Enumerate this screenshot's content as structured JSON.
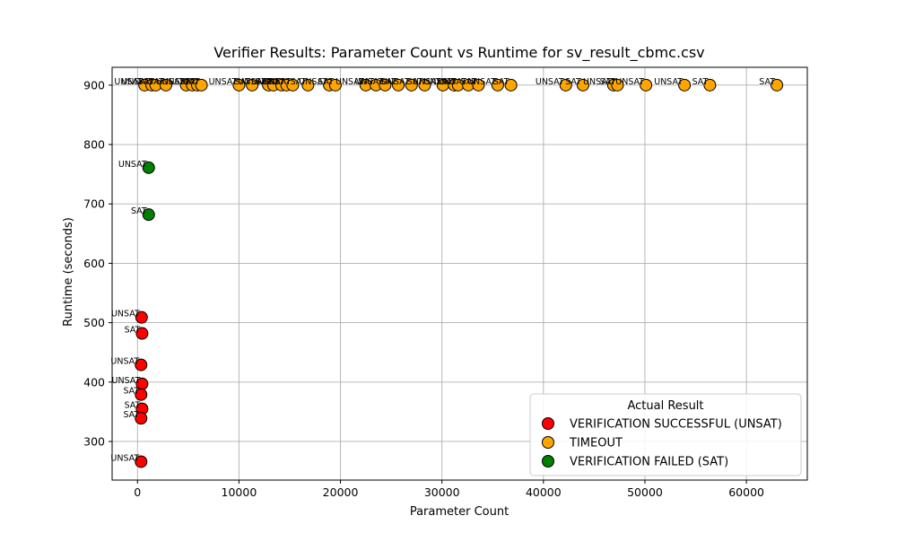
{
  "chart_data": {
    "type": "scatter",
    "title": "Verifier Results: Parameter Count vs Runtime for sv_result_cbmc.csv",
    "xlabel": "Parameter Count",
    "ylabel": "Runtime (seconds)",
    "xlim": [
      -2500,
      66000
    ],
    "ylim": [
      235,
      930
    ],
    "xticks": [
      0,
      10000,
      20000,
      30000,
      40000,
      50000,
      60000
    ],
    "xtick_labels": [
      "0",
      "10000",
      "20000",
      "30000",
      "40000",
      "50000",
      "60000"
    ],
    "yticks": [
      300,
      400,
      500,
      600,
      700,
      800,
      900
    ],
    "ytick_labels": [
      "300",
      "400",
      "500",
      "600",
      "700",
      "800",
      "900"
    ],
    "grid": true,
    "legend": {
      "title": "Actual Result",
      "placement": "lower-right"
    },
    "series": [
      {
        "name": "VERIFICATION SUCCESSFUL (UNSAT)",
        "color": "#ff0000",
        "points": [
          {
            "x": 400,
            "y": 509,
            "label": "UNSAT"
          },
          {
            "x": 450,
            "y": 482,
            "label": "SAT"
          },
          {
            "x": 350,
            "y": 429,
            "label": "UNSAT"
          },
          {
            "x": 450,
            "y": 397,
            "label": "UNSAT"
          },
          {
            "x": 350,
            "y": 379,
            "label": "SAT"
          },
          {
            "x": 450,
            "y": 355,
            "label": "SAT"
          },
          {
            "x": 350,
            "y": 339,
            "label": "SAT"
          },
          {
            "x": 350,
            "y": 266,
            "label": "UNSAT"
          }
        ]
      },
      {
        "name": "TIMEOUT",
        "color": "#ffa500",
        "points": [
          {
            "x": 700,
            "y": 900,
            "label": "UNSAT"
          },
          {
            "x": 1400,
            "y": 900,
            "label": "UNSAT"
          },
          {
            "x": 1800,
            "y": 900,
            "label": "SAT"
          },
          {
            "x": 2800,
            "y": 900,
            "label": "SAT"
          },
          {
            "x": 4800,
            "y": 900,
            "label": "UNSAT"
          },
          {
            "x": 5400,
            "y": 900,
            "label": "UNSAT"
          },
          {
            "x": 5900,
            "y": 900,
            "label": "SAT"
          },
          {
            "x": 6300,
            "y": 900,
            "label": "SAT"
          },
          {
            "x": 10000,
            "y": 900,
            "label": "UNSAT"
          },
          {
            "x": 11300,
            "y": 900,
            "label": "SAT"
          },
          {
            "x": 12900,
            "y": 900,
            "label": "UNSAT"
          },
          {
            "x": 13400,
            "y": 900,
            "label": "SAT"
          },
          {
            "x": 14200,
            "y": 900,
            "label": "UNSAT"
          },
          {
            "x": 14700,
            "y": 900,
            "label": "SAT"
          },
          {
            "x": 15300,
            "y": 900,
            "label": "UNSAT"
          },
          {
            "x": 16800,
            "y": 900,
            "label": "SAT"
          },
          {
            "x": 18900,
            "y": 900,
            "label": "UNSAT"
          },
          {
            "x": 19500,
            "y": 900,
            "label": "SAT"
          },
          {
            "x": 22500,
            "y": 900,
            "label": "UNSAT"
          },
          {
            "x": 23500,
            "y": 900,
            "label": "SAT"
          },
          {
            "x": 24400,
            "y": 900,
            "label": "UNSAT"
          },
          {
            "x": 25700,
            "y": 900,
            "label": "SAT"
          },
          {
            "x": 27000,
            "y": 900,
            "label": "UNSAT"
          },
          {
            "x": 28300,
            "y": 900,
            "label": "SAT"
          },
          {
            "x": 30100,
            "y": 900,
            "label": "UNSAT"
          },
          {
            "x": 31200,
            "y": 900,
            "label": "UNSAT"
          },
          {
            "x": 31600,
            "y": 900,
            "label": "SAT"
          },
          {
            "x": 32600,
            "y": 900,
            "label": "UNSAT"
          },
          {
            "x": 33600,
            "y": 900,
            "label": "SAT"
          },
          {
            "x": 35500,
            "y": 900,
            "label": "UNSAT"
          },
          {
            "x": 36800,
            "y": 900,
            "label": "SAT"
          },
          {
            "x": 42200,
            "y": 900,
            "label": "UNSAT"
          },
          {
            "x": 43900,
            "y": 900,
            "label": "SAT"
          },
          {
            "x": 46900,
            "y": 900,
            "label": "UNSAT"
          },
          {
            "x": 47300,
            "y": 900,
            "label": "SAT"
          },
          {
            "x": 50100,
            "y": 900,
            "label": "UNSAT"
          },
          {
            "x": 53900,
            "y": 900,
            "label": "UNSAT"
          },
          {
            "x": 56400,
            "y": 900,
            "label": "SAT"
          },
          {
            "x": 63000,
            "y": 900,
            "label": "SAT"
          }
        ]
      },
      {
        "name": "VERIFICATION FAILED (SAT)",
        "color": "#008000",
        "points": [
          {
            "x": 1100,
            "y": 761,
            "label": "UNSAT"
          },
          {
            "x": 1100,
            "y": 682,
            "label": "SAT"
          }
        ]
      }
    ]
  }
}
